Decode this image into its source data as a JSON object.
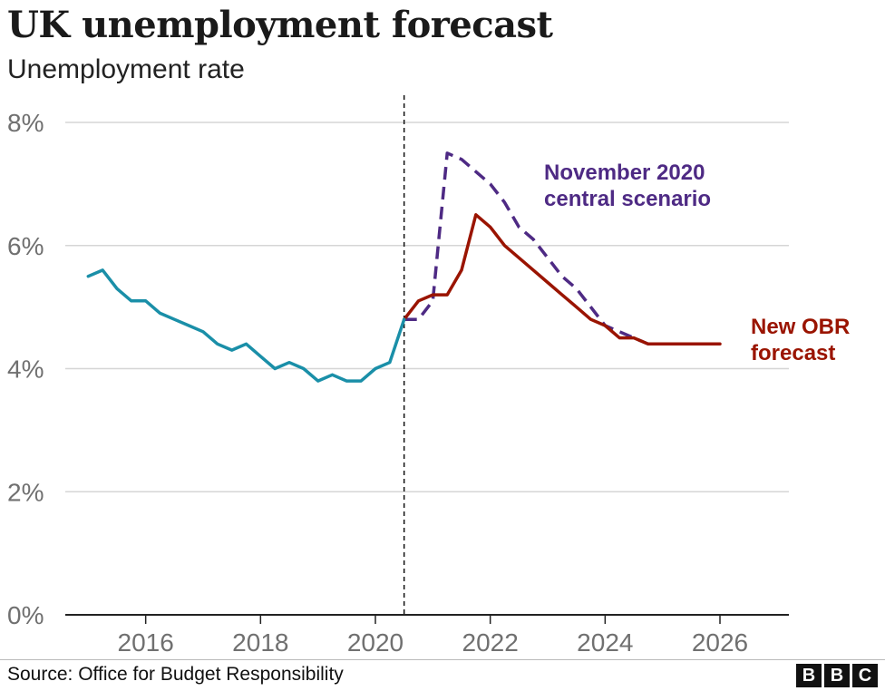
{
  "header": {
    "title": "UK unemployment forecast",
    "subtitle": "Unemployment rate"
  },
  "footer": {
    "source": "Source: Office for Budget Responsibility",
    "logo_letters": [
      "B",
      "B",
      "C"
    ]
  },
  "colors": {
    "history": "#1a8fa8",
    "new_forecast": "#9a1400",
    "nov_scenario": "#4e2a84",
    "grid": "#d6d6d6",
    "axis": "#222222",
    "tick_text": "#707070"
  },
  "chart_data": {
    "type": "line",
    "title": "UK unemployment forecast",
    "subtitle": "Unemployment rate",
    "xlabel": "",
    "ylabel": "",
    "xlim": [
      2014.6,
      2027.2
    ],
    "ylim": [
      0,
      8
    ],
    "x_ticks": [
      2016,
      2018,
      2020,
      2022,
      2024,
      2026
    ],
    "y_ticks": [
      0,
      2,
      4,
      6,
      8
    ],
    "y_tick_labels": [
      "0%",
      "2%",
      "4%",
      "6%",
      "8%"
    ],
    "grid": "horizontal",
    "vertical_marker_x": 2020.5,
    "series": [
      {
        "key": "history",
        "style": "solid",
        "color": "#1a8fa8",
        "x": [
          2015.0,
          2015.25,
          2015.5,
          2015.75,
          2016.0,
          2016.25,
          2016.5,
          2016.75,
          2017.0,
          2017.25,
          2017.5,
          2017.75,
          2018.0,
          2018.25,
          2018.5,
          2018.75,
          2019.0,
          2019.25,
          2019.5,
          2019.75,
          2020.0,
          2020.25,
          2020.5
        ],
        "y": [
          5.5,
          5.6,
          5.3,
          5.1,
          5.1,
          4.9,
          4.8,
          4.7,
          4.6,
          4.4,
          4.3,
          4.4,
          4.2,
          4.0,
          4.1,
          4.0,
          3.8,
          3.9,
          3.8,
          3.8,
          4.0,
          4.1,
          4.8
        ]
      },
      {
        "key": "new_forecast",
        "name": "New OBR forecast",
        "style": "solid",
        "color": "#9a1400",
        "x": [
          2020.5,
          2020.75,
          2021.0,
          2021.25,
          2021.5,
          2021.75,
          2022.0,
          2022.25,
          2022.5,
          2022.75,
          2023.0,
          2023.25,
          2023.5,
          2023.75,
          2024.0,
          2024.25,
          2024.5,
          2024.75,
          2025.0,
          2025.25,
          2025.5,
          2025.75,
          2026.0
        ],
        "y": [
          4.8,
          5.1,
          5.2,
          5.2,
          5.6,
          6.5,
          6.3,
          6.0,
          5.8,
          5.6,
          5.4,
          5.2,
          5.0,
          4.8,
          4.7,
          4.5,
          4.5,
          4.4,
          4.4,
          4.4,
          4.4,
          4.4,
          4.4
        ]
      },
      {
        "key": "nov_scenario",
        "name": "November 2020 central scenario",
        "style": "dashed",
        "color": "#4e2a84",
        "x": [
          2020.5,
          2020.75,
          2021.0,
          2021.25,
          2021.5,
          2021.75,
          2022.0,
          2022.25,
          2022.5,
          2022.75,
          2023.0,
          2023.25,
          2023.5,
          2023.75,
          2024.0,
          2024.25,
          2024.5,
          2024.75,
          2025.0,
          2025.25,
          2025.5,
          2025.75,
          2026.0
        ],
        "y": [
          4.8,
          4.8,
          5.1,
          7.5,
          7.4,
          7.2,
          7.0,
          6.7,
          6.3,
          6.1,
          5.8,
          5.5,
          5.3,
          5.0,
          4.7,
          4.6,
          4.5,
          4.4,
          4.4,
          4.4,
          4.4,
          4.4,
          4.4
        ]
      }
    ],
    "annotations": [
      {
        "series": "nov_scenario",
        "lines": [
          "November 2020",
          "central scenario"
        ]
      },
      {
        "series": "new_forecast",
        "lines": [
          "New OBR",
          "forecast"
        ]
      }
    ]
  }
}
